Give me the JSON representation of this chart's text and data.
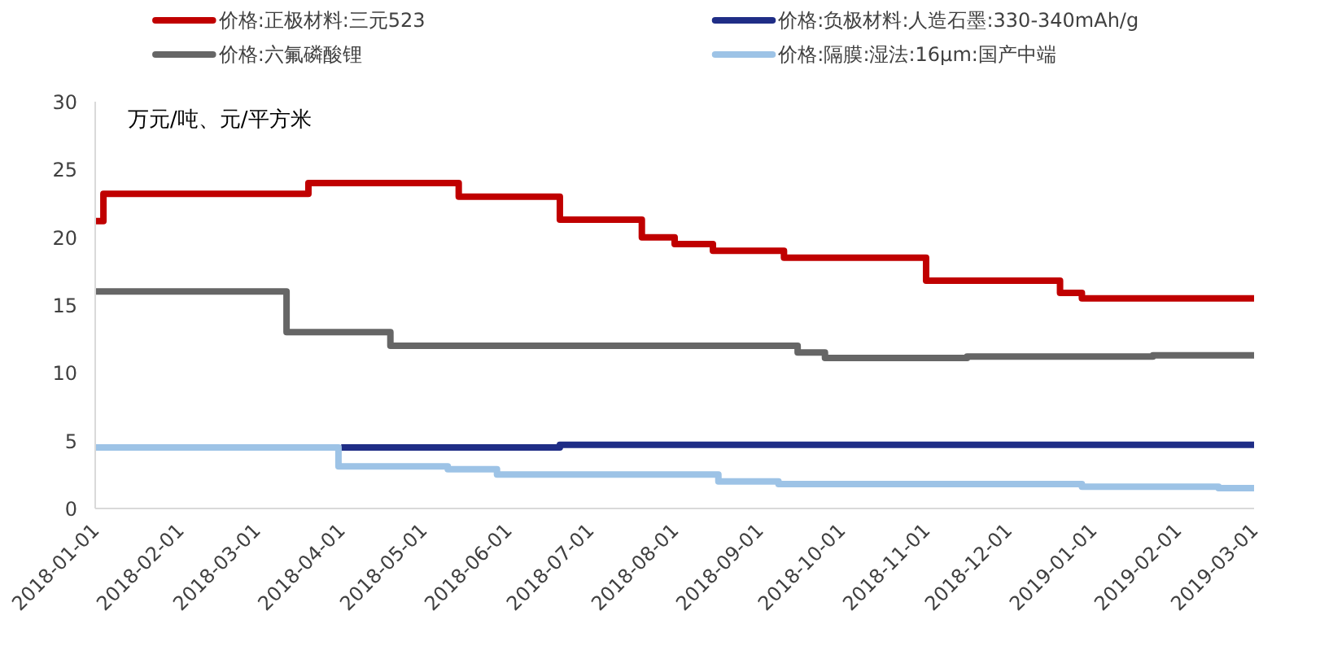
{
  "chart_data": {
    "type": "step",
    "ylabel": "万元/吨、元/平方米",
    "xlim": [
      "2018-01-01",
      "2019-03-01"
    ],
    "xticks": [
      "2018-01-01",
      "2018-02-01",
      "2018-03-01",
      "2018-04-01",
      "2018-05-01",
      "2018-06-01",
      "2018-07-01",
      "2018-08-01",
      "2018-09-01",
      "2018-10-01",
      "2018-11-01",
      "2018-12-01",
      "2019-01-01",
      "2019-02-01",
      "2019-03-01"
    ],
    "ylim": [
      0,
      30
    ],
    "yticks": [
      0,
      5,
      10,
      15,
      20,
      25,
      30
    ],
    "legend": "top",
    "line_style": "solid",
    "series": [
      {
        "name": "价格:正极材料:三元523",
        "color": "#c00000",
        "x": [
          "2018-01-01",
          "2018-01-04",
          "2018-03-20",
          "2018-05-14",
          "2018-06-20",
          "2018-07-20",
          "2018-08-01",
          "2018-08-15",
          "2018-09-10",
          "2018-11-01",
          "2018-12-20",
          "2018-12-28",
          "2019-03-01"
        ],
        "values": [
          21.2,
          23.2,
          24.0,
          23.0,
          21.3,
          20.0,
          19.5,
          19.0,
          18.5,
          16.8,
          15.9,
          15.5,
          15.5
        ]
      },
      {
        "name": "价格:六氟磷酸锂",
        "color": "#666666",
        "x": [
          "2018-01-01",
          "2018-03-12",
          "2018-04-19",
          "2018-09-15",
          "2018-09-25",
          "2018-11-16",
          "2019-01-23",
          "2019-03-01"
        ],
        "values": [
          16.0,
          13.0,
          12.0,
          11.5,
          11.1,
          11.2,
          11.3,
          11.3
        ]
      },
      {
        "name": "价格:负极材料:人造石墨:330-340mAh/g",
        "color": "#1f2d86",
        "x": [
          "2018-04-01",
          "2018-06-20",
          "2019-03-01"
        ],
        "values": [
          4.5,
          4.7,
          4.7
        ]
      },
      {
        "name": "价格:隔膜:湿法:16μm:国产中端",
        "color": "#9dc3e6",
        "x": [
          "2018-01-01",
          "2018-03-31",
          "2018-05-10",
          "2018-05-28",
          "2018-08-17",
          "2018-09-08",
          "2018-12-28",
          "2019-02-16",
          "2019-03-01"
        ],
        "values": [
          4.5,
          3.1,
          2.9,
          2.5,
          2.0,
          1.8,
          1.6,
          1.5,
          1.5
        ]
      }
    ]
  }
}
